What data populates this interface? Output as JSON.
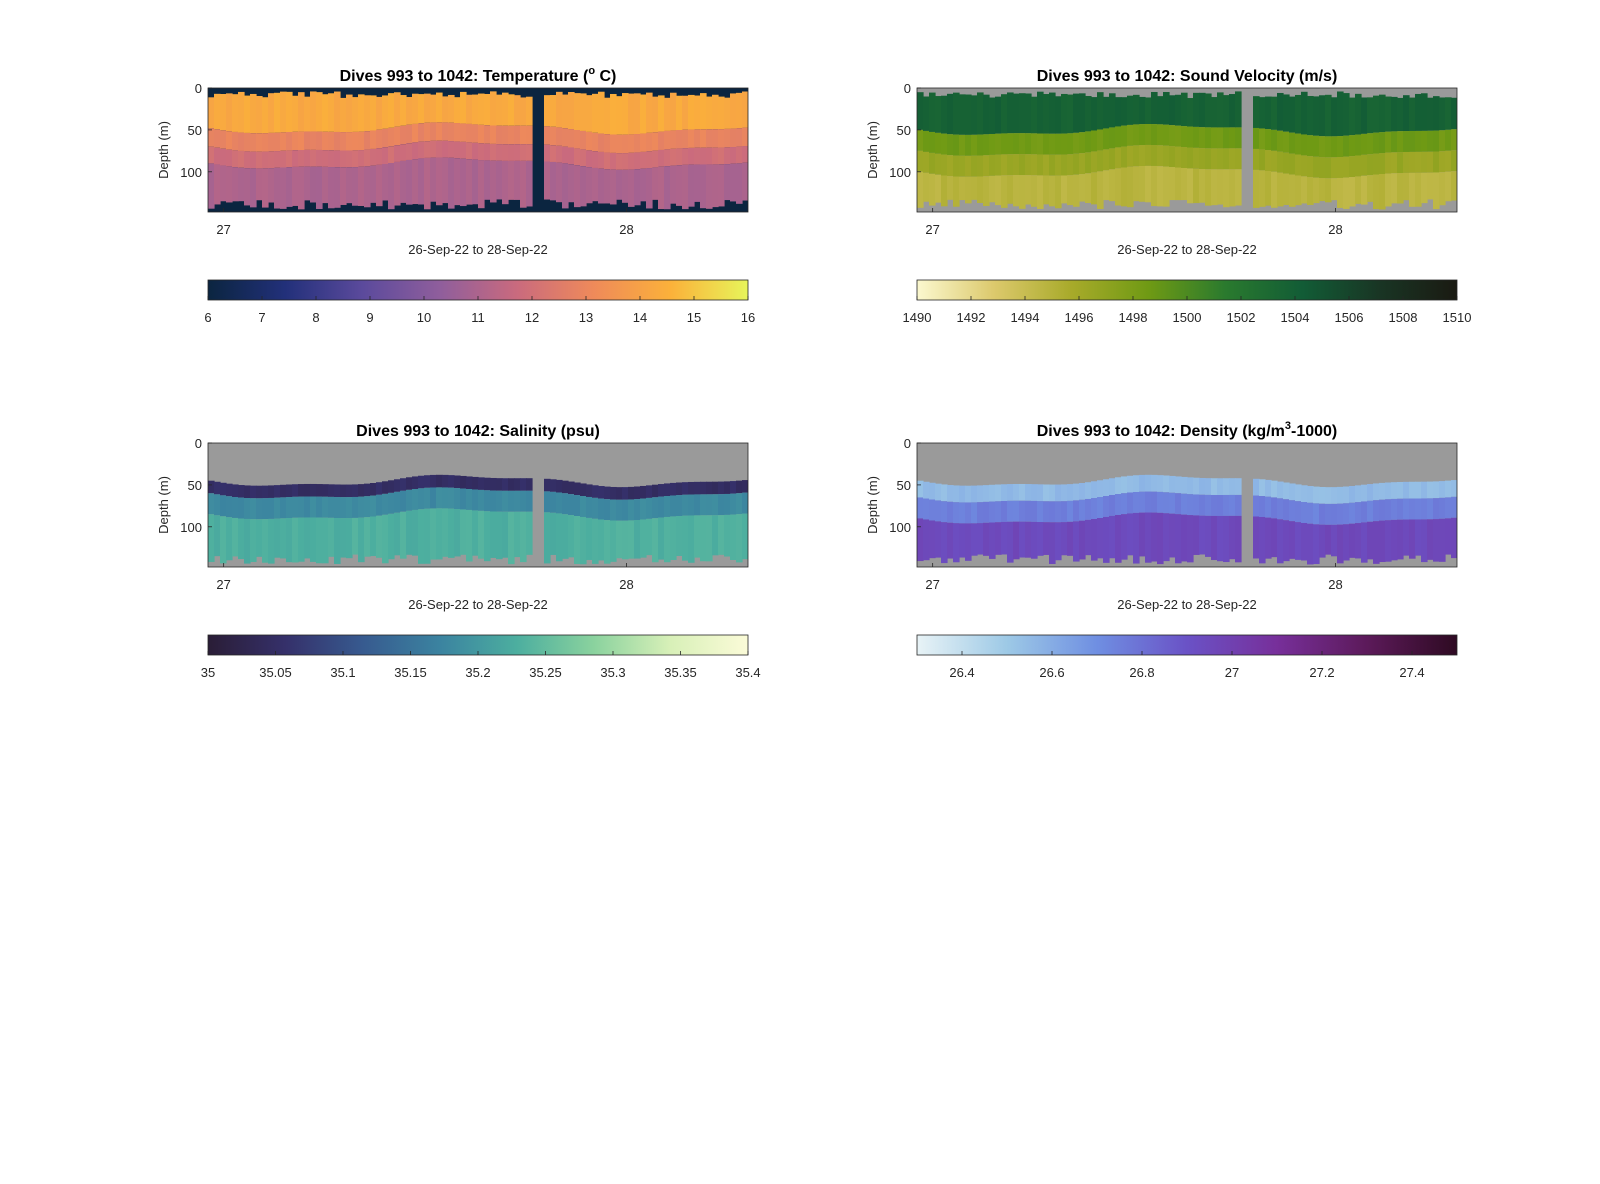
{
  "figure": {
    "background": "#ffffff"
  },
  "chart_data": [
    {
      "type": "heatmap",
      "title_parts": [
        "Dives 993 to 1042: Temperature (",
        "o",
        " C)"
      ],
      "xlabel": "26-Sep-22 to 28-Sep-22",
      "ylabel": "Depth (m)",
      "xticks": [
        "27",
        "28"
      ],
      "yticks": [
        "0",
        "50",
        "100"
      ],
      "ylim": [
        0,
        148
      ],
      "colorbar": {
        "ticks": [
          "6",
          "7",
          "8",
          "9",
          "10",
          "11",
          "12",
          "13",
          "14",
          "15",
          "16"
        ],
        "range": [
          6,
          16
        ],
        "colors": [
          "#0b2540",
          "#22307a",
          "#5b4a9c",
          "#8f5e9c",
          "#c96a7e",
          "#ef8a5a",
          "#fbb13a",
          "#e7f55a"
        ]
      },
      "nodata_color": "#0b2540",
      "gap_fraction": 0.6,
      "layers": [
        {
          "from": 0,
          "to": 48,
          "value": 14.3
        },
        {
          "from": 48,
          "to": 70,
          "value": 12.9
        },
        {
          "from": 70,
          "to": 90,
          "value": 11.9
        },
        {
          "from": 90,
          "to": 148,
          "value": 11.0
        }
      ]
    },
    {
      "type": "heatmap",
      "title_parts": [
        "Dives 993 to 1042: Sound Velocity (m/s)",
        "",
        ""
      ],
      "xlabel": "26-Sep-22 to 28-Sep-22",
      "ylabel": "Depth (m)",
      "xticks": [
        "27",
        "28"
      ],
      "yticks": [
        "0",
        "50",
        "100"
      ],
      "ylim": [
        0,
        148
      ],
      "colorbar": {
        "ticks": [
          "1490",
          "1492",
          "1494",
          "1496",
          "1498",
          "1500",
          "1502",
          "1504",
          "1506",
          "1508",
          "1510"
        ],
        "range": [
          1490,
          1510
        ],
        "colors": [
          "#fbf8cf",
          "#dcc96c",
          "#a8aa2a",
          "#6f9a14",
          "#2a7a2e",
          "#125c36",
          "#193524",
          "#1a1a12"
        ]
      },
      "nodata_color": "#9a9a9a",
      "gap_fraction": 0.6,
      "layers": [
        {
          "from": 0,
          "to": 50,
          "value": 1503.8
        },
        {
          "from": 50,
          "to": 75,
          "value": 1498.5
        },
        {
          "from": 75,
          "to": 100,
          "value": 1496.5
        },
        {
          "from": 100,
          "to": 148,
          "value": 1494.8
        }
      ]
    },
    {
      "type": "heatmap",
      "title_parts": [
        "Dives 993 to 1042: Salinity (psu)",
        "",
        ""
      ],
      "xlabel": "26-Sep-22 to 28-Sep-22",
      "ylabel": "Depth (m)",
      "xticks": [
        "27",
        "28"
      ],
      "yticks": [
        "0",
        "50",
        "100"
      ],
      "ylim": [
        0,
        148
      ],
      "colorbar": {
        "ticks": [
          "35",
          "35.05",
          "35.1",
          "35.15",
          "35.2",
          "35.25",
          "35.3",
          "35.35",
          "35.4"
        ],
        "range": [
          35,
          35.4
        ],
        "colors": [
          "#2a1d36",
          "#35306a",
          "#375a8f",
          "#3b83a0",
          "#4cae9f",
          "#8ad29e",
          "#d8f0b8",
          "#fbfbd8"
        ]
      },
      "nodata_color": "#9a9a9a",
      "gap_fraction": 0.6,
      "layers": [
        {
          "from": 0,
          "to": 45,
          "value": null
        },
        {
          "from": 45,
          "to": 60,
          "value": 35.05
        },
        {
          "from": 60,
          "to": 85,
          "value": 35.18
        },
        {
          "from": 85,
          "to": 148,
          "value": 35.23
        }
      ]
    },
    {
      "type": "heatmap",
      "title_parts": [
        "Dives 993 to 1042: Density (kg/m",
        "3",
        "-1000)"
      ],
      "xlabel": "26-Sep-22 to 28-Sep-22",
      "ylabel": "Depth (m)",
      "xticks": [
        "27",
        "28"
      ],
      "yticks": [
        "0",
        "50",
        "100"
      ],
      "ylim": [
        0,
        148
      ],
      "colorbar": {
        "ticks": [
          "26.4",
          "26.6",
          "26.8",
          "27",
          "27.2",
          "27.4"
        ],
        "range": [
          26.3,
          27.5
        ],
        "colors": [
          "#e8f3f6",
          "#9dc9e6",
          "#6f8fe2",
          "#6a52c6",
          "#772f9a",
          "#5c1a5a",
          "#2e0a22"
        ]
      },
      "nodata_color": "#9a9a9a",
      "gap_fraction": 0.6,
      "layers": [
        {
          "from": 0,
          "to": 45,
          "value": null
        },
        {
          "from": 45,
          "to": 65,
          "value": 26.55
        },
        {
          "from": 65,
          "to": 90,
          "value": 26.75
        },
        {
          "from": 90,
          "to": 148,
          "value": 26.95
        }
      ]
    }
  ]
}
